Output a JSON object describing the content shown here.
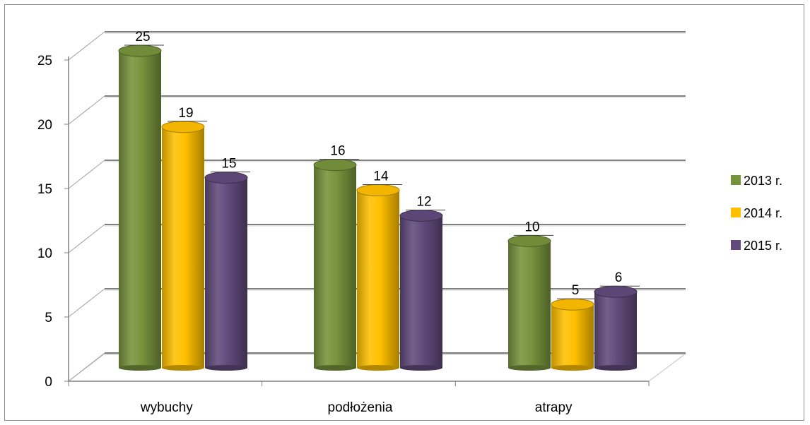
{
  "chart_data": {
    "type": "bar",
    "categories": [
      "wybuchy",
      "podłożenia",
      "atrapy"
    ],
    "series": [
      {
        "name": "2013 r.",
        "values": [
          25,
          16,
          10
        ],
        "color": "#77933c"
      },
      {
        "name": "2014 r.",
        "values": [
          19,
          14,
          5
        ],
        "color": "#ffc000"
      },
      {
        "name": "2015 r.",
        "values": [
          15,
          12,
          6
        ],
        "color": "#604a7b"
      }
    ],
    "y_ticks": [
      "0",
      "5",
      "10",
      "15",
      "20",
      "25"
    ],
    "ylim": [
      0,
      25
    ],
    "grid": true,
    "legend_position": "right",
    "style": "3d-cylinder"
  }
}
